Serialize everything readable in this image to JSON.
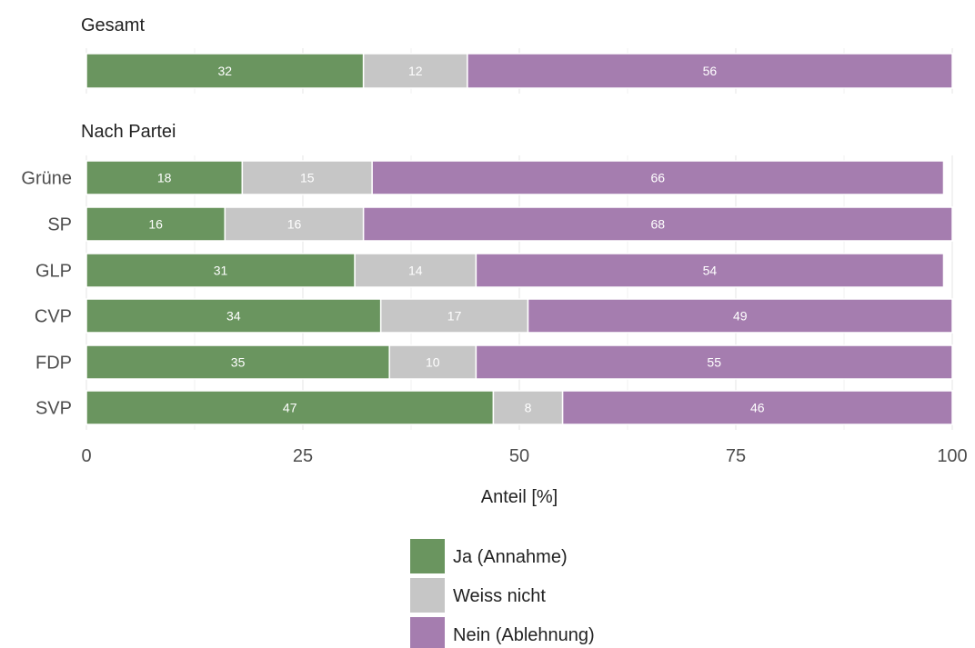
{
  "chart_data": {
    "type": "bar",
    "orientation": "horizontal",
    "stacked": true,
    "xlabel": "Anteil [%]",
    "xlim": [
      0,
      100
    ],
    "xticks": [
      0,
      25,
      50,
      75,
      100
    ],
    "grid": true,
    "legend_position": "bottom",
    "series": [
      {
        "name": "Ja (Annahme)",
        "color": "#6a955f"
      },
      {
        "name": "Weiss nicht",
        "color": "#c6c6c6"
      },
      {
        "name": "Nein (Ablehnung)",
        "color": "#a57daf"
      }
    ],
    "panels": [
      {
        "title": "Gesamt",
        "categories": [
          ""
        ],
        "values": [
          [
            32,
            12,
            56
          ]
        ]
      },
      {
        "title": "Nach Partei",
        "categories": [
          "Grüne",
          "SP",
          "GLP",
          "CVP",
          "FDP",
          "SVP"
        ],
        "values": [
          [
            18,
            15,
            66
          ],
          [
            16,
            16,
            68
          ],
          [
            31,
            14,
            54
          ],
          [
            34,
            17,
            49
          ],
          [
            35,
            10,
            55
          ],
          [
            47,
            8,
            46
          ]
        ]
      }
    ]
  }
}
